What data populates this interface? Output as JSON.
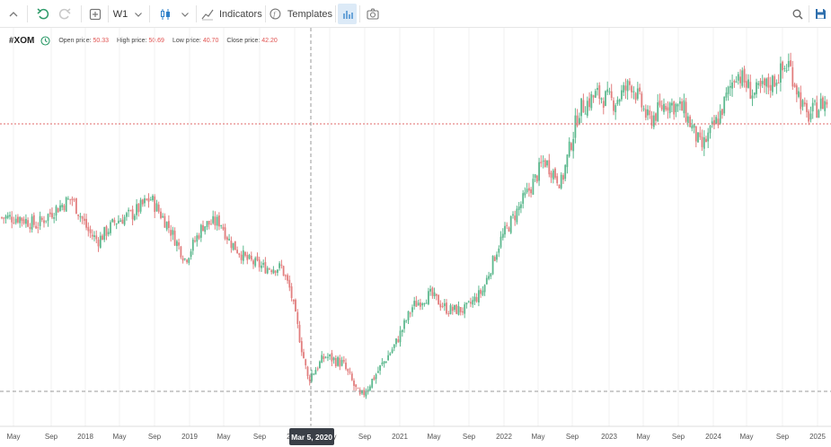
{
  "toolbar": {
    "timeframe": "W1",
    "indicators_label": "Indicators",
    "templates_label": "Templates",
    "icons": [
      "collapse-up-icon",
      "undo-icon",
      "redo-icon",
      "add-icon",
      "chevron-down-icon",
      "candlestick-icon",
      "chevron-down-icon",
      "indicators-icon",
      "templates-icon",
      "bar-chart-icon",
      "camera-icon",
      "search-icon",
      "save-icon"
    ]
  },
  "legend": {
    "symbol": "#XOM",
    "open_label": "Open price:",
    "open_value": "50.33",
    "high_label": "High price:",
    "high_value": "50.69",
    "low_label": "Low price:",
    "low_value": "40.70",
    "close_label": "Close price:",
    "close_value": "42.20"
  },
  "crosshair": {
    "date_label": "Mar 5, 2020"
  },
  "colors": {
    "up": "#5cb88e",
    "down": "#e27e7e",
    "crosshair": "#9a9a9a",
    "price_line": "#e06b6b",
    "accent": "#2f80c9",
    "legend_value": "#e0514f"
  },
  "chart_data": {
    "type": "candlestick",
    "symbol": "#XOM",
    "timeframe": "W1",
    "x_tick_labels": [
      "May",
      "Sep",
      "2018",
      "May",
      "Sep",
      "2019",
      "May",
      "Sep",
      "2020",
      "May",
      "Sep",
      "2021",
      "May",
      "Sep",
      "2022",
      "May",
      "Sep",
      "2023",
      "May",
      "Sep",
      "2024",
      "May",
      "Sep",
      "2025"
    ],
    "series": [
      {
        "close_trend": [
          [
            "2017-04",
            80
          ],
          [
            "2017-06",
            80
          ],
          [
            "2017-08",
            78
          ],
          [
            "2017-10",
            82
          ],
          [
            "2017-12",
            85
          ],
          [
            "2018-02",
            76
          ],
          [
            "2018-03",
            74
          ],
          [
            "2018-05",
            79
          ],
          [
            "2018-07",
            81
          ],
          [
            "2018-09",
            85
          ],
          [
            "2018-11",
            78
          ],
          [
            "2019-01",
            69
          ],
          [
            "2019-03",
            78
          ],
          [
            "2019-05",
            79
          ],
          [
            "2019-06",
            74
          ],
          [
            "2019-08",
            69
          ],
          [
            "2019-10",
            67
          ],
          [
            "2019-12",
            67
          ],
          [
            "2020-01",
            61
          ],
          [
            "2020-03",
            38
          ],
          [
            "2020-05",
            44
          ],
          [
            "2020-07",
            42
          ],
          [
            "2020-09",
            33
          ],
          [
            "2020-11",
            40
          ],
          [
            "2021-01",
            47
          ],
          [
            "2021-03",
            57
          ],
          [
            "2021-05",
            60
          ],
          [
            "2021-07",
            56
          ],
          [
            "2021-09",
            56
          ],
          [
            "2021-11",
            61
          ],
          [
            "2022-01",
            74
          ],
          [
            "2022-03",
            82
          ],
          [
            "2022-05",
            90
          ],
          [
            "2022-06",
            95
          ],
          [
            "2022-08",
            89
          ],
          [
            "2022-10",
            108
          ],
          [
            "2022-12",
            112
          ],
          [
            "2023-02",
            110
          ],
          [
            "2023-04",
            115
          ],
          [
            "2023-06",
            105
          ],
          [
            "2023-08",
            110
          ],
          [
            "2023-10",
            108
          ],
          [
            "2023-12",
            98
          ],
          [
            "2024-02",
            106
          ],
          [
            "2024-04",
            118
          ],
          [
            "2024-06",
            112
          ],
          [
            "2024-08",
            115
          ],
          [
            "2024-10",
            120
          ],
          [
            "2024-12",
            106
          ],
          [
            "2025-02",
            110
          ]
        ]
      }
    ]
  }
}
